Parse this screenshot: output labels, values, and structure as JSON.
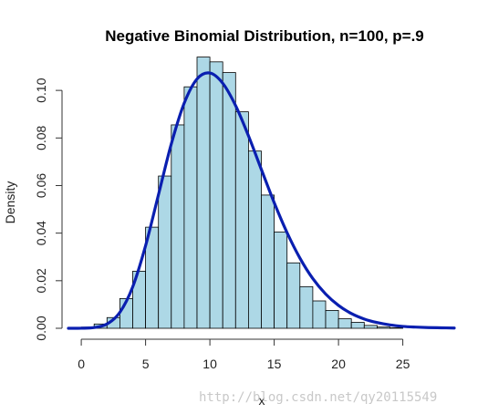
{
  "chart_data": {
    "type": "bar",
    "title": "Negative Binomial Distribution, n=100, p=.9",
    "xlabel": "x",
    "ylabel": "Density",
    "xlim": [
      -1,
      29
    ],
    "ylim": [
      0,
      0.115
    ],
    "xticks": [
      "0",
      "5",
      "10",
      "15",
      "20",
      "25"
    ],
    "yticks": [
      "0.00",
      "0.02",
      "0.04",
      "0.06",
      "0.08",
      "0.10"
    ],
    "bin_width": 1,
    "bin_starts": [
      0,
      1,
      2,
      3,
      4,
      5,
      6,
      7,
      8,
      9,
      10,
      11,
      12,
      13,
      14,
      15,
      16,
      17,
      18,
      19,
      20,
      21,
      22,
      23,
      24
    ],
    "values": [
      0.0005,
      0.0018,
      0.0045,
      0.0125,
      0.024,
      0.0425,
      0.064,
      0.0855,
      0.1015,
      0.114,
      0.112,
      0.1075,
      0.091,
      0.0745,
      0.056,
      0.0405,
      0.0275,
      0.0175,
      0.0115,
      0.0075,
      0.004,
      0.0025,
      0.0012,
      0.0005,
      0.0002
    ],
    "curve": {
      "name": "Negative binomial density",
      "x": [
        -1,
        0,
        1,
        2,
        3,
        4,
        5,
        6,
        7,
        8,
        9,
        10,
        11,
        12,
        13,
        14,
        15,
        16,
        17,
        18,
        19,
        20,
        21,
        22,
        23,
        24,
        25,
        26,
        27,
        28,
        29
      ],
      "y": [
        0.0,
        3e-05,
        0.0003,
        0.0018,
        0.0067,
        0.0174,
        0.0347,
        0.0561,
        0.0775,
        0.0946,
        0.1048,
        0.1073,
        0.103,
        0.0936,
        0.0809,
        0.0668,
        0.0528,
        0.0402,
        0.0295,
        0.0209,
        0.0144,
        0.0096,
        0.0062,
        0.0039,
        0.0024,
        0.0014,
        0.0008,
        0.0005,
        0.0003,
        0.0002,
        0.0001
      ]
    },
    "bar_fill": "#add8e6",
    "bar_stroke": "#000000",
    "curve_color": "#0a1fb0",
    "grid": false
  },
  "watermark": "http://blog.csdn.net/qy20115549"
}
